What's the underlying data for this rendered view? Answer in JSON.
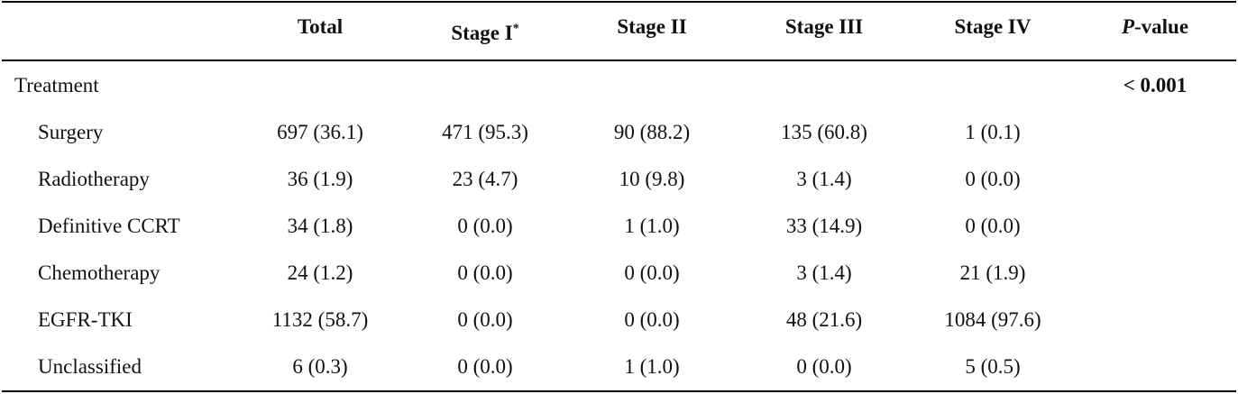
{
  "table": {
    "columns": [
      {
        "label": "",
        "sup": ""
      },
      {
        "label": "Total",
        "sup": ""
      },
      {
        "label": "Stage I",
        "sup": "*"
      },
      {
        "label": "Stage II",
        "sup": ""
      },
      {
        "label": "Stage III",
        "sup": ""
      },
      {
        "label": "Stage IV",
        "sup": ""
      },
      {
        "label": "P",
        "sup": "",
        "suffix": "-value"
      }
    ],
    "group": {
      "label": "Treatment",
      "p_value": "< 0.001"
    },
    "rows": [
      {
        "label": "Surgery",
        "cells": [
          "697 (36.1)",
          "471 (95.3)",
          "90 (88.2)",
          "135 (60.8)",
          "1 (0.1)"
        ]
      },
      {
        "label": "Radiotherapy",
        "cells": [
          "36 (1.9)",
          "23 (4.7)",
          "10 (9.8)",
          "3 (1.4)",
          "0 (0.0)"
        ]
      },
      {
        "label": "Definitive CCRT",
        "cells": [
          "34 (1.8)",
          "0 (0.0)",
          "1 (1.0)",
          "33 (14.9)",
          "0 (0.0)"
        ]
      },
      {
        "label": "Chemotherapy",
        "cells": [
          "24 (1.2)",
          "0 (0.0)",
          "0 (0.0)",
          "3 (1.4)",
          "21 (1.9)"
        ]
      },
      {
        "label": "EGFR-TKI",
        "cells": [
          "1132 (58.7)",
          "0 (0.0)",
          "0 (0.0)",
          "48 (21.6)",
          "1084 (97.6)"
        ]
      },
      {
        "label": "Unclassified",
        "cells": [
          "6 (0.3)",
          "0 (0.0)",
          "1 (1.0)",
          "0 (0.0)",
          "5 (0.5)"
        ]
      }
    ]
  }
}
